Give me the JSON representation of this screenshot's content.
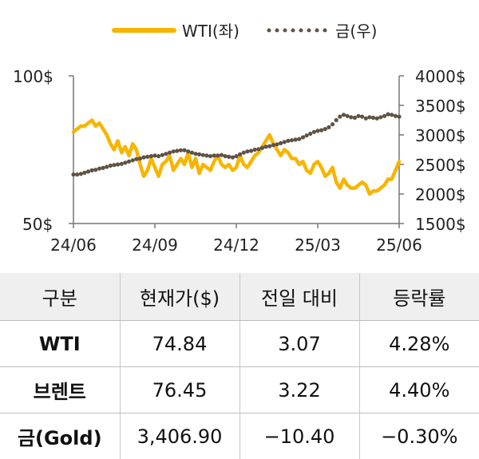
{
  "chart_data": {
    "type": "line",
    "x_ticks": [
      "24/06",
      "24/09",
      "24/12",
      "25/03",
      "25/06"
    ],
    "y_left": {
      "ticks": [
        "100$",
        "50$"
      ],
      "min": 50,
      "max": 100
    },
    "y_right": {
      "ticks": [
        "4000$",
        "3500$",
        "3000$",
        "2500$",
        "2000$",
        "1500$"
      ],
      "min": 1500,
      "max": 4000
    },
    "legend_position": "top-center",
    "series": [
      {
        "name": "WTI(좌)",
        "axis": "left",
        "color": "#f7b500",
        "style": "solid",
        "values": [
          81,
          82,
          83,
          83,
          84,
          85,
          83,
          84,
          82,
          80,
          77,
          75,
          78,
          74,
          76,
          73,
          77,
          75,
          70,
          66,
          68,
          72,
          69,
          66,
          70,
          71,
          73,
          68,
          70,
          72,
          70,
          74,
          69,
          72,
          67,
          70,
          69,
          68,
          71,
          73,
          70,
          69,
          70,
          68,
          69,
          73,
          70,
          69,
          71,
          73,
          74,
          76,
          78,
          80,
          77,
          75,
          73,
          75,
          74,
          72,
          72,
          70,
          71,
          68,
          67,
          70,
          71,
          69,
          66,
          67,
          69,
          64,
          62,
          65,
          63,
          62,
          62,
          63,
          64,
          63,
          60,
          61,
          61,
          62,
          63,
          65,
          65,
          68,
          71
        ]
      },
      {
        "name": "금(우)",
        "axis": "right",
        "color": "#5f5245",
        "style": "dotted",
        "values": [
          2330,
          2330,
          2340,
          2360,
          2380,
          2400,
          2410,
          2430,
          2440,
          2460,
          2480,
          2490,
          2500,
          2510,
          2530,
          2550,
          2570,
          2590,
          2600,
          2620,
          2630,
          2640,
          2650,
          2640,
          2660,
          2680,
          2700,
          2720,
          2730,
          2740,
          2740,
          2720,
          2700,
          2680,
          2670,
          2660,
          2650,
          2640,
          2650,
          2650,
          2660,
          2640,
          2630,
          2620,
          2640,
          2670,
          2700,
          2720,
          2730,
          2750,
          2760,
          2780,
          2800,
          2810,
          2830,
          2840,
          2860,
          2880,
          2900,
          2910,
          2920,
          2930,
          2960,
          2990,
          3020,
          3050,
          3070,
          3080,
          3100,
          3130,
          3180,
          3250,
          3310,
          3340,
          3320,
          3300,
          3290,
          3320,
          3310,
          3280,
          3300,
          3290,
          3280,
          3300,
          3320,
          3350,
          3340,
          3320,
          3310
        ]
      }
    ]
  },
  "table": {
    "headers": [
      "구분",
      "현재가($)",
      "전일 대비",
      "등락률"
    ],
    "rows": [
      [
        "WTI",
        "74.84",
        "3.07",
        "4.28%"
      ],
      [
        "브렌트",
        "76.45",
        "3.22",
        "4.40%"
      ],
      [
        "금(Gold)",
        "3,406.90",
        "−10.40",
        "−0.30%"
      ]
    ]
  }
}
